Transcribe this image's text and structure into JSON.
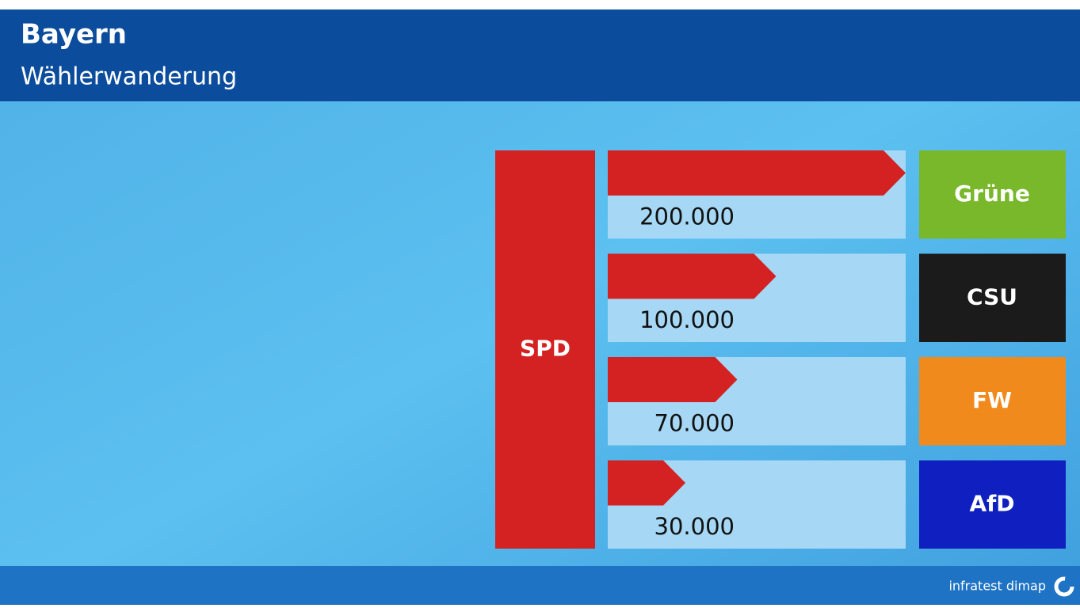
{
  "chart_data": {
    "type": "bar",
    "title": "Bayern",
    "subtitle": "Wählerwanderung",
    "from": "SPD",
    "from_color": "#d42222",
    "categories": [
      "Grüne",
      "CSU",
      "FW",
      "AfD"
    ],
    "values": [
      200000,
      100000,
      70000,
      30000
    ],
    "value_labels": [
      "200.000",
      "100.000",
      "70.000",
      "30.000"
    ],
    "colors": [
      "#78b82a",
      "#1b1b1b",
      "#f18a1c",
      "#1020c0"
    ],
    "bar_color": "#d42222",
    "source": "infratest dimap"
  }
}
